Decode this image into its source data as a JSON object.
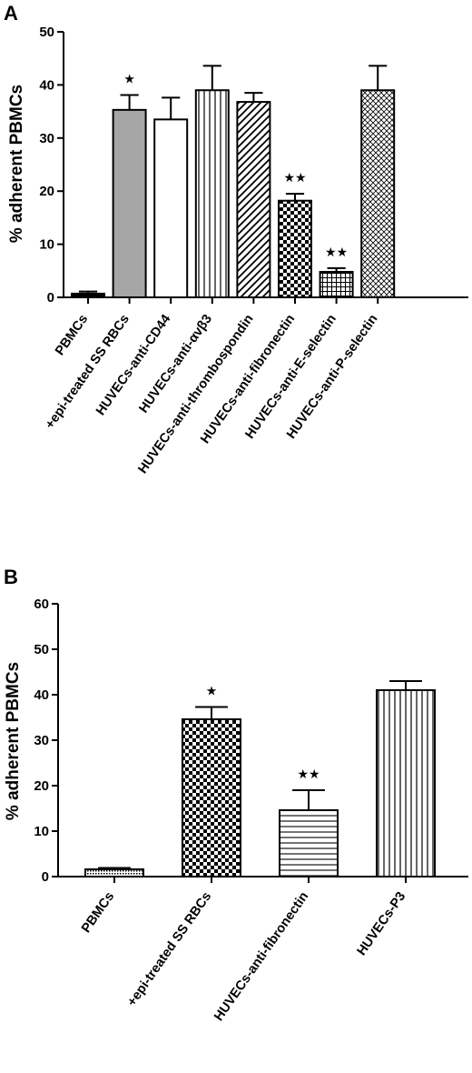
{
  "chart_data": [
    {
      "panel": "A",
      "type": "bar",
      "ylabel": "% adherent PBMCs",
      "ylim": [
        0,
        50
      ],
      "yticks": [
        "0",
        "10",
        "20",
        "30",
        "40",
        "50"
      ],
      "categories": [
        "PBMCs",
        "+epi-treated SS RBCs",
        "HUVECs-anti-CD44",
        "HUVECs-anti-αvβ3",
        "HUVECs-anti-thrombospondin",
        "HUVECs-anti-fibronectin",
        "HUVECs-anti-E-selectin",
        "HUVECs-anti-P-selectin"
      ],
      "values": [
        0.7,
        35.3,
        33.5,
        39.0,
        36.8,
        18.2,
        4.8,
        39.0
      ],
      "errors": [
        0.4,
        2.8,
        4.1,
        4.6,
        1.7,
        1.3,
        0.7,
        4.6
      ],
      "annotations": [
        "",
        "★",
        "",
        "",
        "",
        "★★",
        "★★",
        ""
      ],
      "fills": [
        "solid-black",
        "solid-gray",
        "white",
        "vertical-lines",
        "diagonal-lines",
        "checkerboard",
        "grid",
        "crosshatch"
      ],
      "colors": {
        "gray_bar": "#a6a6a6"
      },
      "grid": false
    },
    {
      "panel": "B",
      "type": "bar",
      "ylabel": "% adherent PBMCs",
      "ylim": [
        0,
        60
      ],
      "yticks": [
        "0",
        "10",
        "20",
        "30",
        "40",
        "50",
        "60"
      ],
      "categories": [
        "PBMCs",
        "+epi-treated SS RBCs",
        "HUVECs-anti-fibronectin",
        "HUVECs-P3"
      ],
      "values": [
        1.6,
        34.6,
        14.6,
        41.0
      ],
      "errors": [
        0.3,
        2.7,
        4.4,
        2.0
      ],
      "annotations": [
        "",
        "★",
        "★★",
        ""
      ],
      "fills": [
        "dense-dots",
        "checkerboard",
        "horizontal-lines",
        "vertical-lines"
      ],
      "grid": false
    }
  ]
}
